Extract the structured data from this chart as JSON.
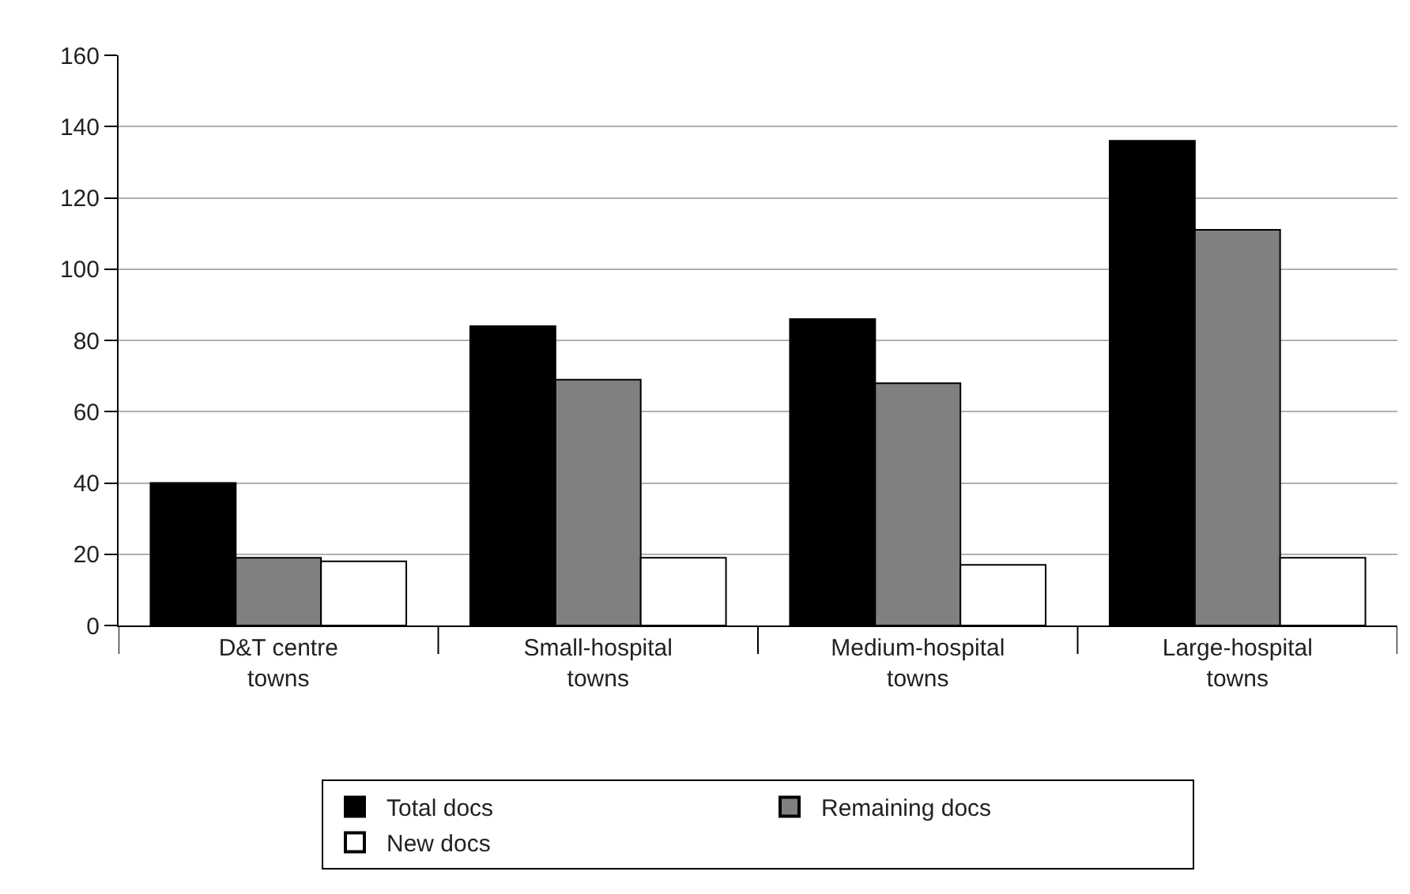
{
  "chart_data": {
    "type": "bar",
    "categories": [
      "D&T centre\ntowns",
      "Small-hospital\ntowns",
      "Medium-hospital\ntowns",
      "Large-hospital\ntowns"
    ],
    "series": [
      {
        "name": "Total docs",
        "color": "#000000",
        "values": [
          40,
          84,
          86,
          136
        ]
      },
      {
        "name": "Remaining docs",
        "color": "#808080",
        "values": [
          19,
          69,
          68,
          111
        ]
      },
      {
        "name": "New docs",
        "color": "#ffffff",
        "values": [
          18,
          19,
          17,
          19
        ]
      }
    ],
    "ylim": [
      0,
      160
    ],
    "yticks": [
      0,
      20,
      40,
      60,
      80,
      100,
      120,
      140,
      160
    ],
    "grid": "y",
    "legend": "bottom"
  }
}
